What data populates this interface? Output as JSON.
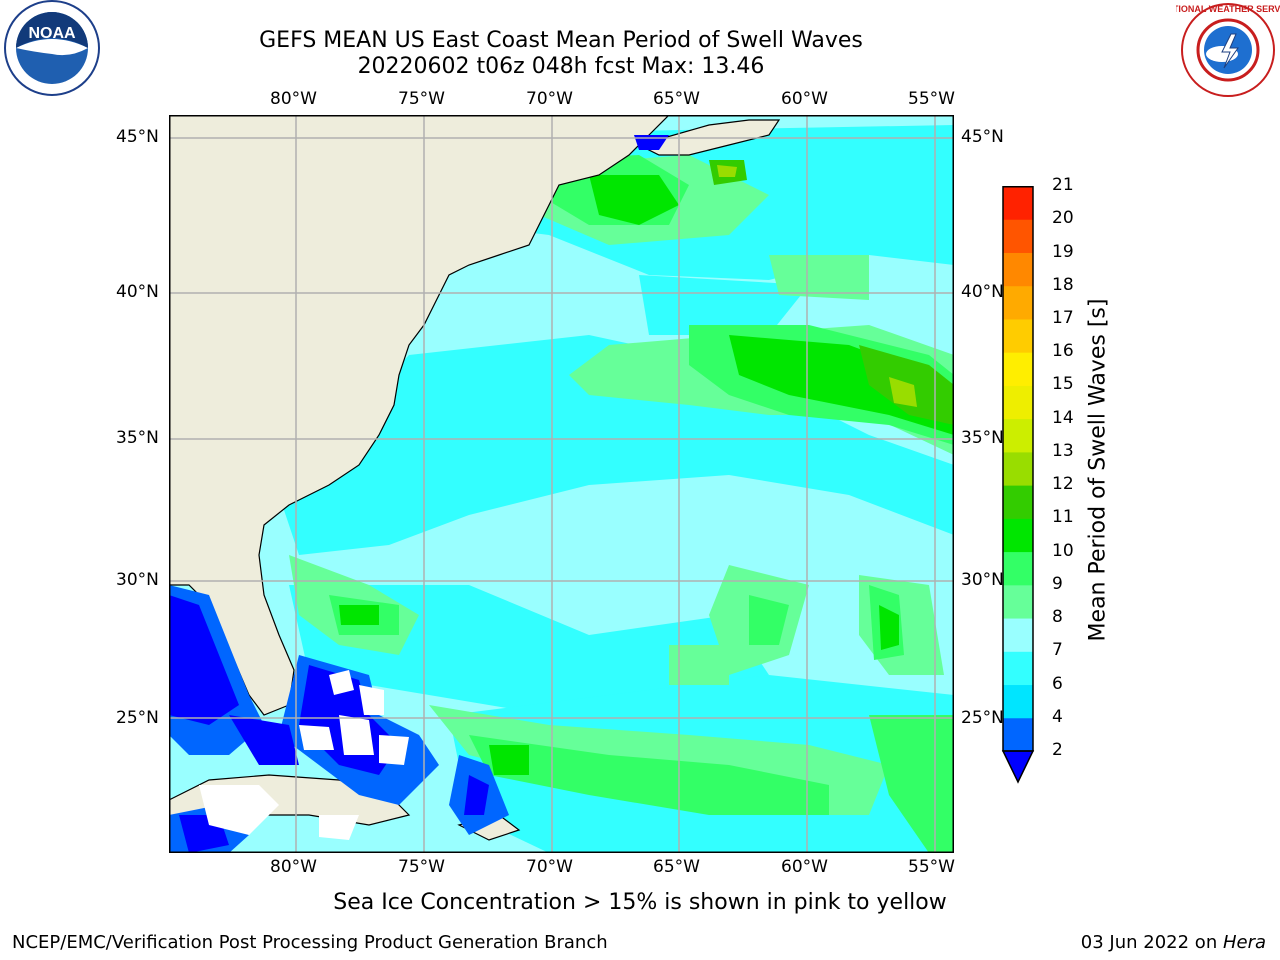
{
  "header": {
    "title_line1": "GEFS MEAN US East Coast Mean Period of Swell Waves",
    "title_line2": "20220602 t06z 048h fcst   Max: 13.46"
  },
  "logos": {
    "left": {
      "name": "noaa-logo",
      "text": "NOAA"
    },
    "right": {
      "name": "nws-logo",
      "text": "NATIONAL WEATHER SERVICE"
    }
  },
  "map": {
    "lon_ticks": [
      "80°W",
      "75°W",
      "70°W",
      "65°W",
      "60°W",
      "55°W"
    ],
    "lat_ticks": [
      "45°N",
      "40°N",
      "35°N",
      "30°N",
      "25°N"
    ],
    "extent": {
      "lon_min": -85,
      "lon_max": -54.3,
      "lat_min": 20.5,
      "lat_max": 46
    },
    "colors": {
      "ocean_base": "#99ffff",
      "land": "#eeeddc",
      "grid": "#b0b0b0"
    }
  },
  "colorbar": {
    "title": "Mean Period of Swell Waves [s]",
    "labels": [
      "2",
      "4",
      "6",
      "7",
      "8",
      "9",
      "10",
      "11",
      "12",
      "13",
      "14",
      "15",
      "16",
      "17",
      "18",
      "19",
      "20",
      "21"
    ],
    "levels": [
      {
        "from": 2,
        "color": "#0066ff"
      },
      {
        "from": 4,
        "color": "#00e5ff"
      },
      {
        "from": 6,
        "color": "#33ffff"
      },
      {
        "from": 7,
        "color": "#99ffff"
      },
      {
        "from": 8,
        "color": "#66ff99"
      },
      {
        "from": 9,
        "color": "#33ff66"
      },
      {
        "from": 10,
        "color": "#00e600"
      },
      {
        "from": 11,
        "color": "#33cc00"
      },
      {
        "from": 12,
        "color": "#99dd00"
      },
      {
        "from": 13,
        "color": "#ccee00"
      },
      {
        "from": 14,
        "color": "#eeee00"
      },
      {
        "from": 15,
        "color": "#ffee00"
      },
      {
        "from": 16,
        "color": "#ffcc00"
      },
      {
        "from": 17,
        "color": "#ffaa00"
      },
      {
        "from": 18,
        "color": "#ff8800"
      },
      {
        "from": 19,
        "color": "#ff5500"
      },
      {
        "from": 20,
        "color": "#ff2200"
      }
    ],
    "extend_color": "#0000ff"
  },
  "caption": "Sea Ice Concentration > 15% is shown in pink to yellow",
  "footer": {
    "left": "NCEP/EMC/Verification Post Processing Product Generation Branch",
    "right_date": "03 Jun 2022 on ",
    "right_host": "Hera"
  }
}
